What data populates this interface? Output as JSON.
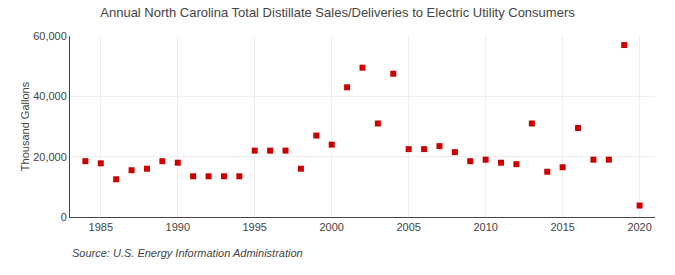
{
  "chart_data": {
    "type": "scatter",
    "title": "Annual North Carolina Total Distillate Sales/Deliveries to Electric Utility Consumers",
    "ylabel": "Thousand Gallons",
    "annotations": [
      "Source: U.S. Energy Information Administration"
    ],
    "x": [
      1984,
      1985,
      1986,
      1987,
      1988,
      1989,
      1990,
      1991,
      1992,
      1993,
      1994,
      1995,
      1996,
      1997,
      1998,
      1999,
      2000,
      2001,
      2002,
      2003,
      2004,
      2005,
      2006,
      2007,
      2008,
      2009,
      2010,
      2011,
      2012,
      2013,
      2014,
      2015,
      2016,
      2017,
      2018,
      2019,
      2020
    ],
    "values": [
      18500,
      17800,
      12500,
      15500,
      16000,
      18500,
      18000,
      13500,
      13500,
      13500,
      13500,
      22000,
      22000,
      22000,
      16000,
      27000,
      24000,
      43000,
      49500,
      31000,
      47500,
      22500,
      22500,
      23500,
      21500,
      18500,
      19000,
      18000,
      17500,
      31000,
      15000,
      16500,
      29500,
      19000,
      19000,
      57000,
      3800
    ],
    "color": "#cc0000",
    "marker": "square",
    "xlim": [
      1983,
      2021
    ],
    "xticks": [
      1985,
      1990,
      1995,
      2000,
      2005,
      2010,
      2015,
      2020
    ],
    "ylim": [
      0,
      60000
    ],
    "yticks": [
      0,
      {
        "value": 20000,
        "label": "20,000"
      },
      {
        "value": 40000,
        "label": "40,000"
      },
      {
        "value": 60000,
        "label": "60,000"
      }
    ],
    "grid": true
  }
}
